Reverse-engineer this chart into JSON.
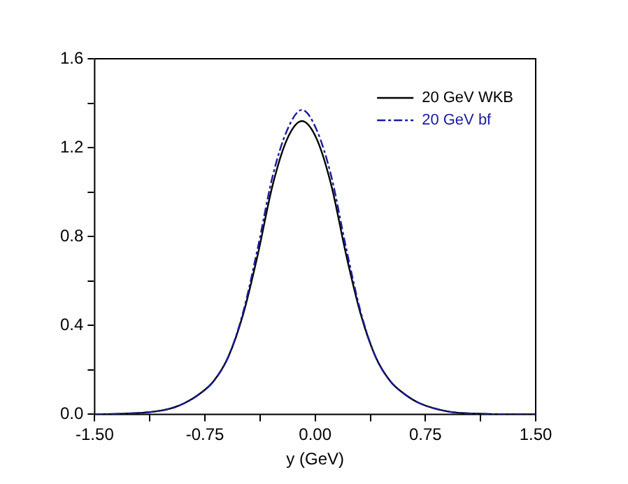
{
  "chart_data": {
    "type": "line",
    "xlabel": "y (GeV)",
    "x": [
      -1.5,
      -1.3,
      -1.1,
      -0.99,
      -0.89,
      -0.79,
      -0.69,
      -0.59,
      -0.49,
      -0.39,
      -0.29,
      -0.19,
      -0.09,
      0.01,
      0.11,
      0.21,
      0.31,
      0.41,
      0.51,
      0.61,
      0.71,
      0.91,
      1.11,
      1.31,
      1.5
    ],
    "series": [
      {
        "name": "20 GeV WKB",
        "color": "#000000",
        "line_style": "solid",
        "values": [
          0,
          0.003,
          0.012,
          0.025,
          0.05,
          0.09,
          0.15,
          0.26,
          0.45,
          0.72,
          1.03,
          1.24,
          1.32,
          1.24,
          1.03,
          0.72,
          0.45,
          0.26,
          0.15,
          0.09,
          0.05,
          0.012,
          0.003,
          0,
          0
        ]
      },
      {
        "name": "20 GeV bf",
        "color": "#1a1aa0",
        "line_style": "dashed",
        "values": [
          0,
          0.003,
          0.012,
          0.025,
          0.05,
          0.09,
          0.15,
          0.26,
          0.46,
          0.75,
          1.07,
          1.28,
          1.37,
          1.28,
          1.07,
          0.75,
          0.46,
          0.26,
          0.15,
          0.09,
          0.05,
          0.012,
          0.003,
          0,
          0
        ]
      }
    ],
    "xlim": [
      -1.5,
      1.5
    ],
    "xticks": [
      {
        "value": -1.5,
        "label": "-1.50"
      },
      {
        "value": -1.125,
        "label": null
      },
      {
        "value": -0.75,
        "label": "-0.75"
      },
      {
        "value": -0.375,
        "label": null
      },
      {
        "value": 0,
        "label": "0.00"
      },
      {
        "value": 0.375,
        "label": null
      },
      {
        "value": 0.75,
        "label": "0.75"
      },
      {
        "value": 1.125,
        "label": null
      },
      {
        "value": 1.5,
        "label": "1.50"
      }
    ],
    "ylim": [
      0,
      1.6
    ],
    "yticks": [
      {
        "value": 0,
        "label": "0.0"
      },
      {
        "value": 0.2,
        "label": null
      },
      {
        "value": 0.4,
        "label": "0.4"
      },
      {
        "value": 0.6,
        "label": null
      },
      {
        "value": 0.8,
        "label": "0.8"
      },
      {
        "value": 1.0,
        "label": null
      },
      {
        "value": 1.2,
        "label": "1.2"
      },
      {
        "value": 1.4,
        "label": null
      },
      {
        "value": 1.6,
        "label": "1.6"
      }
    ],
    "grid": false,
    "legend": "top right",
    "marker": "none"
  }
}
